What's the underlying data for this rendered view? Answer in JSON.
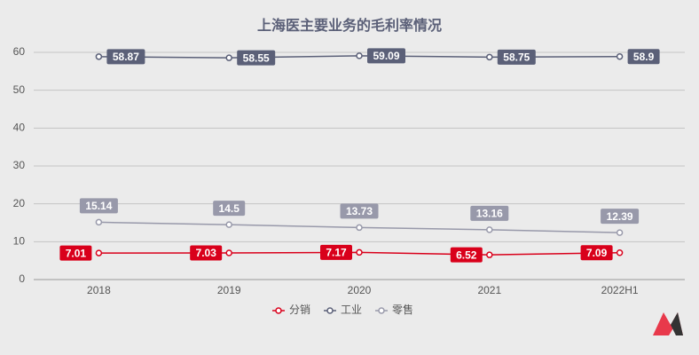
{
  "chart_data": {
    "type": "line",
    "title": "上海医主要业务的毛利率情况",
    "categories": [
      "2018",
      "2019",
      "2020",
      "2021",
      "2022H1"
    ],
    "series": [
      {
        "name": "分销",
        "color": "#d9001b",
        "values": [
          7.01,
          7.03,
          7.17,
          6.52,
          7.09
        ],
        "label_position": "left"
      },
      {
        "name": "工业",
        "color": "#5b6078",
        "values": [
          58.87,
          58.55,
          59.09,
          58.75,
          58.9
        ],
        "label_position": "right"
      },
      {
        "name": "零售",
        "color": "#9899aa",
        "values": [
          15.14,
          14.5,
          13.73,
          13.16,
          12.39
        ],
        "label_position": "top"
      }
    ],
    "ylim": [
      0,
      60
    ],
    "yticks": [
      0,
      10,
      20,
      30,
      40,
      50,
      60
    ],
    "grid": true,
    "legend": "bottom"
  }
}
